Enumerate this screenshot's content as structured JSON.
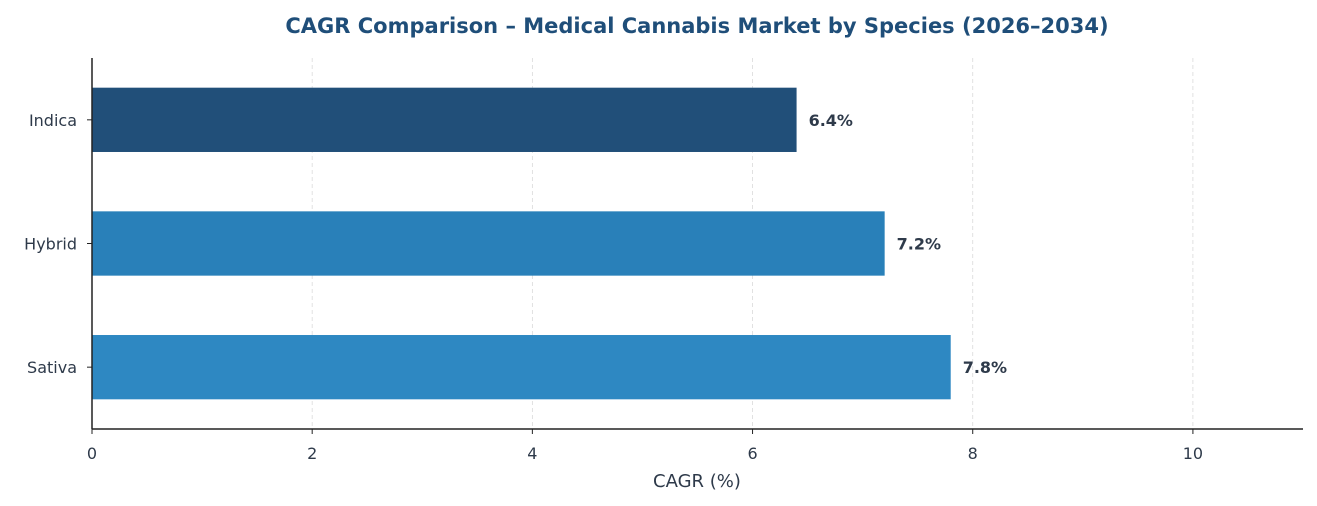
{
  "chart_data": {
    "type": "bar",
    "orientation": "horizontal",
    "title": "CAGR Comparison – Medical Cannabis Market by Species (2026–2034)",
    "xlabel": "CAGR (%)",
    "ylabel": "",
    "categories": [
      "Indica",
      "Hybrid",
      "Sativa"
    ],
    "values": [
      6.4,
      7.2,
      7.8
    ],
    "data_labels": [
      "6.4%",
      "7.2%",
      "7.8%"
    ],
    "bar_colors": [
      "#214f79",
      "#2980b9",
      "#2e88c2"
    ],
    "xlim": [
      0,
      11
    ],
    "xticks": [
      0,
      2,
      4,
      6,
      8,
      10
    ],
    "xtick_labels": [
      "0",
      "2",
      "4",
      "6",
      "8",
      "10"
    ],
    "grid": "x-dashed",
    "legend": "none"
  }
}
